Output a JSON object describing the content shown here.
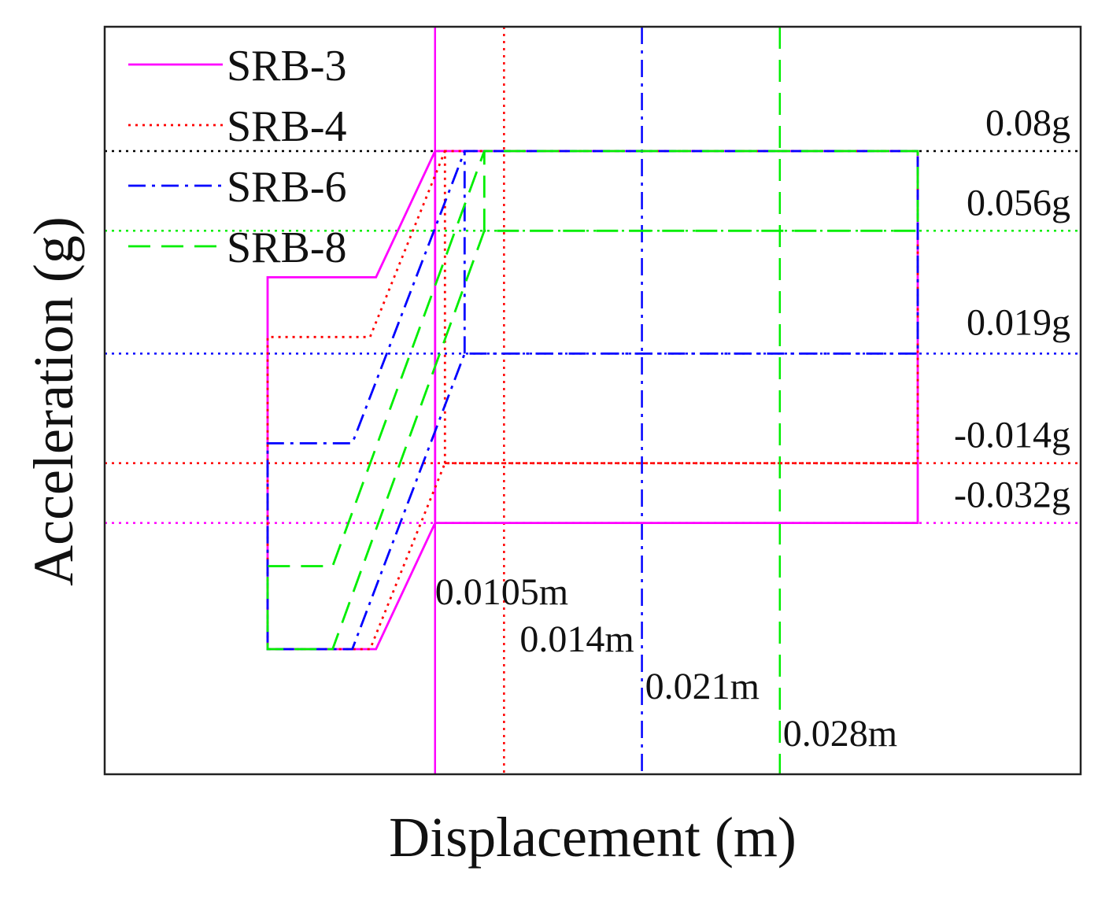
{
  "chart_data": {
    "type": "line",
    "xlabel": "Displacement (m)",
    "ylabel": "Acceleration (g)",
    "x_ticks_shown": false,
    "y_ticks_shown": false,
    "legend_position": "top-left",
    "series": [
      {
        "name": "SRB-3",
        "color": "#ff00ff",
        "dash": "solid",
        "points": [
          [
            0.0105,
            -0.032
          ],
          [
            0.0105,
            0.08
          ],
          [
            0.035,
            0.08
          ],
          [
            0.035,
            -0.032
          ],
          [
            0.0105,
            -0.032
          ],
          [
            0.0105,
            -0.032
          ],
          [
            0.0075,
            -0.07
          ],
          [
            0.002,
            -0.07
          ],
          [
            0.002,
            0.042
          ],
          [
            0.0075,
            0.042
          ],
          [
            0.0105,
            0.08
          ]
        ]
      },
      {
        "name": "SRB-4",
        "color": "#ff0000",
        "dash": "dotted",
        "points": [
          [
            0.011,
            -0.014
          ],
          [
            0.011,
            0.08
          ],
          [
            0.035,
            0.08
          ],
          [
            0.035,
            -0.014
          ],
          [
            0.011,
            -0.014
          ],
          [
            0.011,
            -0.014
          ],
          [
            0.0072,
            -0.07
          ],
          [
            0.002,
            -0.07
          ],
          [
            0.002,
            0.024
          ],
          [
            0.0072,
            0.024
          ],
          [
            0.011,
            0.08
          ]
        ]
      },
      {
        "name": "SRB-6",
        "color": "#0000ff",
        "dash": "dashdot",
        "points": [
          [
            0.012,
            0.019
          ],
          [
            0.012,
            0.08
          ],
          [
            0.035,
            0.08
          ],
          [
            0.035,
            0.019
          ],
          [
            0.012,
            0.019
          ],
          [
            0.012,
            0.019
          ],
          [
            0.0063,
            -0.07
          ],
          [
            0.002,
            -0.07
          ],
          [
            0.002,
            -0.008
          ],
          [
            0.0063,
            -0.008
          ],
          [
            0.012,
            0.08
          ]
        ]
      },
      {
        "name": "SRB-8",
        "color": "#00ee00",
        "dash": "dashed",
        "points": [
          [
            0.013,
            0.056
          ],
          [
            0.013,
            0.08
          ],
          [
            0.035,
            0.08
          ],
          [
            0.035,
            0.056
          ],
          [
            0.013,
            0.056
          ],
          [
            0.013,
            0.056
          ],
          [
            0.0053,
            -0.07
          ],
          [
            0.002,
            -0.07
          ],
          [
            0.002,
            -0.045
          ],
          [
            0.0053,
            -0.045
          ],
          [
            0.013,
            0.08
          ]
        ]
      }
    ],
    "reference_lines": [
      {
        "orientation": "horizontal",
        "value": 0.08,
        "label": "0.08g",
        "color": "#000000"
      },
      {
        "orientation": "horizontal",
        "value": 0.056,
        "label": "0.056g",
        "color": "#00ee00"
      },
      {
        "orientation": "horizontal",
        "value": 0.019,
        "label": "0.019g",
        "color": "#0000ff"
      },
      {
        "orientation": "horizontal",
        "value": -0.014,
        "label": "-0.014g",
        "color": "#ff0000"
      },
      {
        "orientation": "horizontal",
        "value": -0.032,
        "label": "-0.032g",
        "color": "#ff00ff"
      },
      {
        "orientation": "vertical",
        "value": 0.0105,
        "label": "0.0105m",
        "color": "#ff00ff",
        "dash": "solid"
      },
      {
        "orientation": "vertical",
        "value": 0.014,
        "label": "0.014m",
        "color": "#ff0000",
        "dash": "dotted"
      },
      {
        "orientation": "vertical",
        "value": 0.021,
        "label": "0.021m",
        "color": "#0000ff",
        "dash": "dashdot"
      },
      {
        "orientation": "vertical",
        "value": 0.028,
        "label": "0.028m",
        "color": "#00ee00",
        "dash": "dashed"
      }
    ]
  }
}
